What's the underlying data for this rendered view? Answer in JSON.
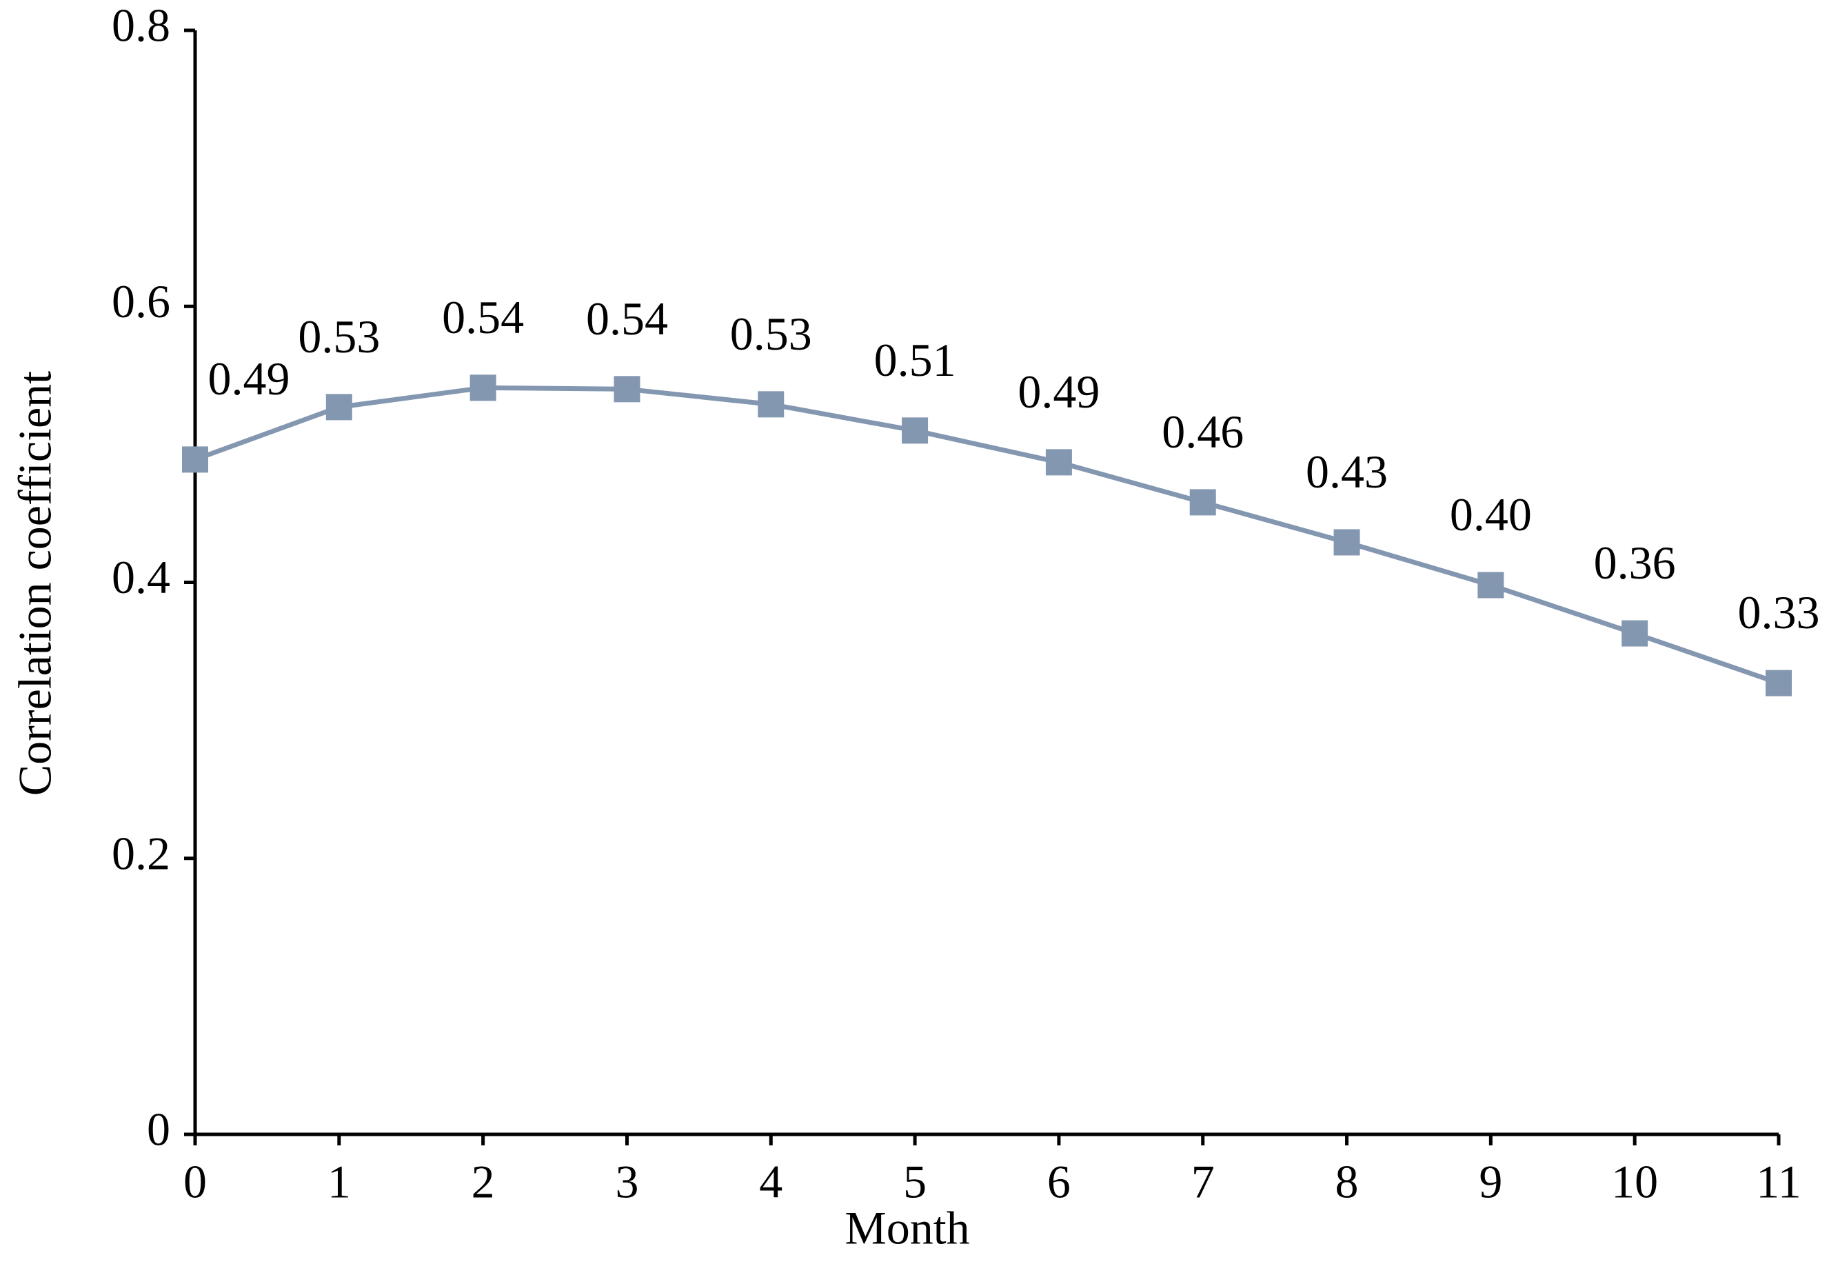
{
  "chart_data": {
    "type": "line",
    "x_label": "Month",
    "y_label": "Correlation coefficient",
    "x": [
      0,
      1,
      2,
      3,
      4,
      5,
      6,
      7,
      8,
      9,
      10,
      11
    ],
    "series": [
      {
        "color": "#8497b0",
        "values": [
          0.489,
          0.527,
          0.541,
          0.54,
          0.529,
          0.51,
          0.487,
          0.458,
          0.429,
          0.398,
          0.363,
          0.327
        ],
        "value_labels": [
          "0.49",
          "0.53",
          "0.54",
          "0.54",
          "0.53",
          "0.51",
          "0.49",
          "0.46",
          "0.43",
          "0.40",
          "0.36",
          "0.33"
        ]
      }
    ],
    "xlim": [
      0,
      11
    ],
    "xticks": [
      0,
      1,
      2,
      3,
      4,
      5,
      6,
      7,
      8,
      9,
      10,
      11
    ],
    "ylim": [
      0,
      0.8
    ],
    "yticks": [
      0,
      0.2,
      0.4,
      0.6,
      0.8
    ],
    "grid": false
  }
}
